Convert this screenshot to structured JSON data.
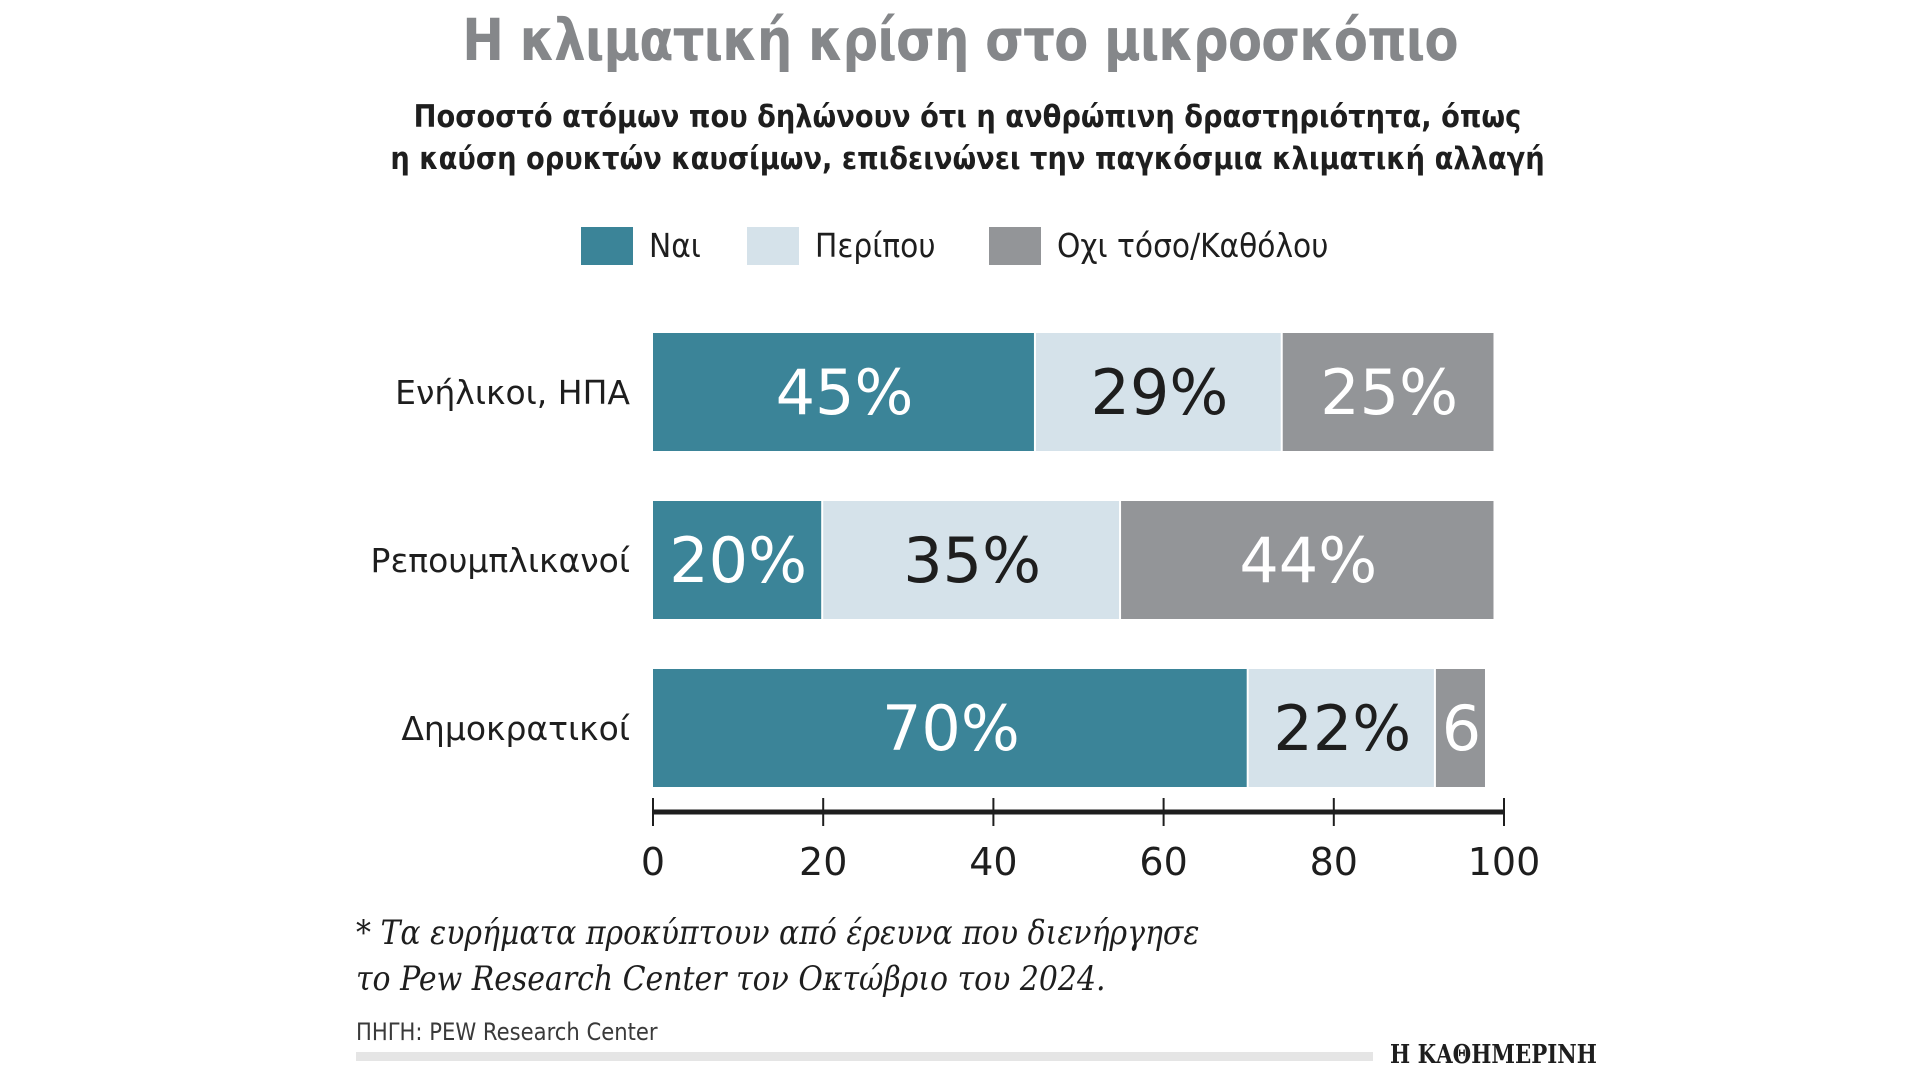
{
  "header": {
    "title": "Η κλιματική κρίση στο μικροσκόπιο",
    "subtitle_line1": "Ποσοστό ατόμων που δηλώνουν ότι η ανθρώπινη δραστηριότητα, όπως",
    "subtitle_line2": "η καύση ορυκτών καυσίμων, επιδεινώνει την παγκόσμια κλιματική αλλαγή"
  },
  "legend": [
    {
      "label": "Ναι",
      "color": "#3b8498"
    },
    {
      "label": "Περίπου",
      "color": "#d5e2ea"
    },
    {
      "label": "Οχι τόσο/Καθόλου",
      "color": "#939598"
    }
  ],
  "chart_data": {
    "type": "bar",
    "orientation": "horizontal",
    "stacked": true,
    "title": "Η κλιματική κρίση στο μικροσκόπιο",
    "subtitle": "Ποσοστό ατόμων που δηλώνουν ότι η ανθρώπινη δραστηριότητα, όπως η καύση ορυκτών καυσίμων, επιδεινώνει την παγκόσμια κλιματική αλλαγή",
    "categories": [
      "Ενήλικοι, ΗΠΑ",
      "Ρεπουμπλικανοί",
      "Δημοκρατικοί"
    ],
    "series": [
      {
        "name": "Ναι",
        "color": "#3b8498",
        "label_color": "#ffffff",
        "values": [
          45,
          20,
          70
        ],
        "labels": [
          "45%",
          "20%",
          "70%"
        ]
      },
      {
        "name": "Περίπου",
        "color": "#d5e2ea",
        "label_color": "#1e1e1e",
        "values": [
          29,
          35,
          22
        ],
        "labels": [
          "29%",
          "35%",
          "22%"
        ]
      },
      {
        "name": "Οχι τόσο/Καθόλου",
        "color": "#939598",
        "label_color": "#ffffff",
        "values": [
          25,
          44,
          6
        ],
        "labels": [
          "25%",
          "44%",
          "6"
        ]
      }
    ],
    "xlim": [
      0,
      100
    ],
    "xticks": [
      0,
      20,
      40,
      60,
      80,
      100
    ],
    "xlabel": "",
    "ylabel": "",
    "grid": false,
    "legend_position": "top-center"
  },
  "footer": {
    "footnote_line1": "* Τα ευρήματα προκύπτουν από έρευνα που διενήργησε",
    "footnote_line2": "το Pew Research Center τον Οκτώβριο του 2024.",
    "source": "ΠΗΓΗ: PEW Research Center",
    "brand": "Η ΚΑΘΗΜΕΡΙΝΗ"
  }
}
